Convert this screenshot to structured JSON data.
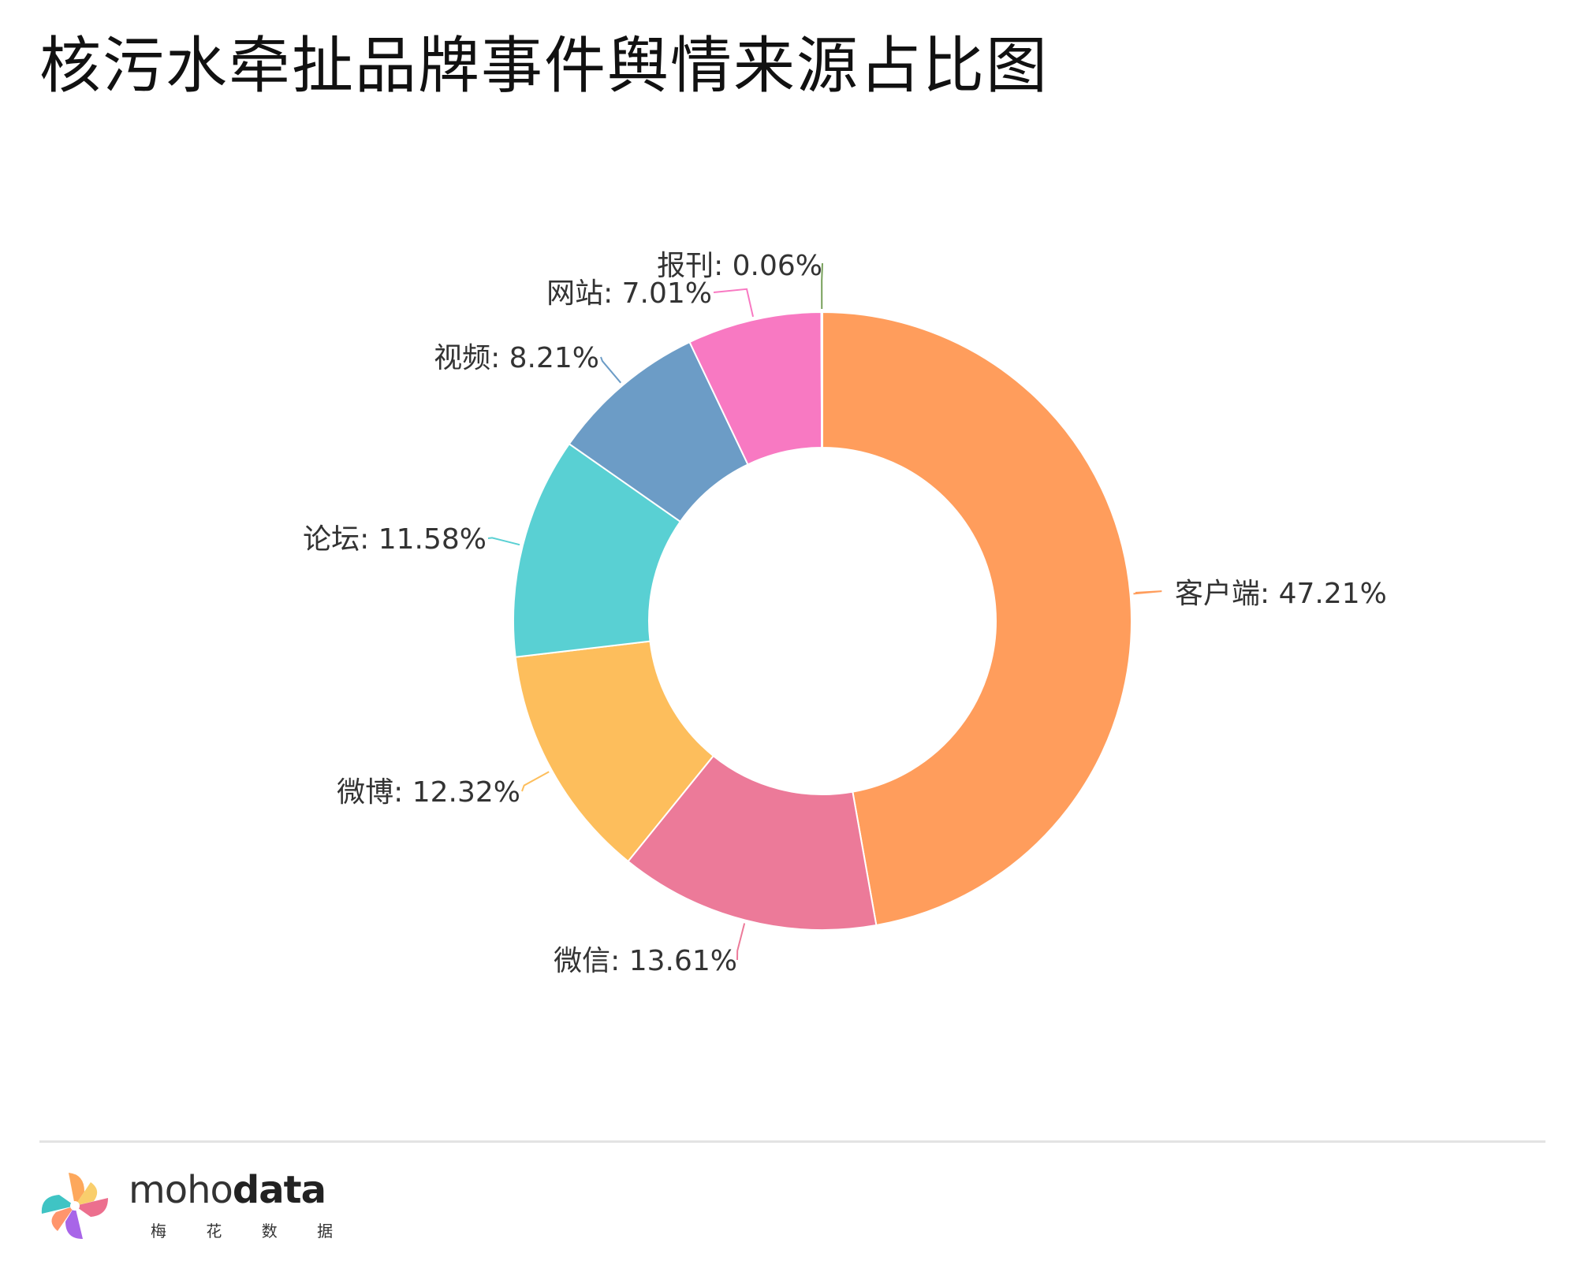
{
  "title": "核污水牵扯品牌事件舆情来源占比图",
  "logo": {
    "word_light": "moho",
    "word_bold": "data",
    "subtitle": "梅 花 数 据"
  },
  "colors": {
    "slices": [
      "#FF9D5C",
      "#EC7A99",
      "#FDBE5C",
      "#59D0D3",
      "#6C9CC6",
      "#F879C2",
      "#77A05A"
    ],
    "label_text": "#333333"
  },
  "chart_data": {
    "type": "pie",
    "donut": true,
    "start_angle_deg": 0,
    "direction": "clockwise",
    "slices": [
      {
        "label": "客户端",
        "value": 47.21
      },
      {
        "label": "微信",
        "value": 13.61
      },
      {
        "label": "微博",
        "value": 12.32
      },
      {
        "label": "论坛",
        "value": 11.58
      },
      {
        "label": "视频",
        "value": 8.21
      },
      {
        "label": "网站",
        "value": 7.01
      },
      {
        "label": "报刊",
        "value": 0.06
      }
    ],
    "label_format": "{label}: {value}%"
  }
}
